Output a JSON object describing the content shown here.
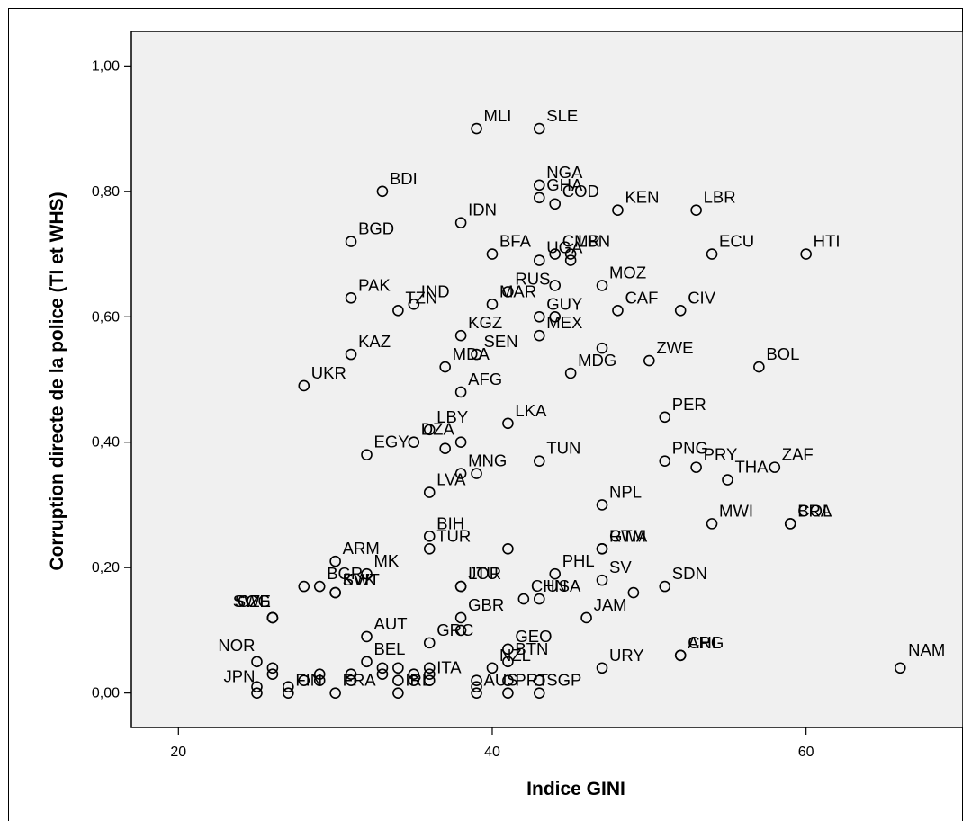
{
  "chart_data": {
    "type": "scatter",
    "title": "",
    "xlabel": "Indice GINI",
    "ylabel": "Corruption directe de la police (TI et WHS)",
    "xlim": [
      17,
      70
    ],
    "ylim": [
      -0.055,
      1.055
    ],
    "x_ticks": [
      20,
      40,
      60
    ],
    "x_tick_labels": [
      "20",
      "40",
      "60"
    ],
    "y_ticks": [
      0.0,
      0.2,
      0.4,
      0.6,
      0.8,
      1.0
    ],
    "y_tick_labels": [
      "0,00",
      "0,20",
      "0,40",
      "0,60",
      "0,80",
      "1,00"
    ],
    "grid": false,
    "marker": "open-circle",
    "points": [
      {
        "label": "MLI",
        "x": 39,
        "y": 0.9
      },
      {
        "label": "SLE",
        "x": 43,
        "y": 0.9
      },
      {
        "label": "BDI",
        "x": 33,
        "y": 0.8
      },
      {
        "label": "NGA",
        "x": 43,
        "y": 0.81
      },
      {
        "label": "GHA",
        "x": 43,
        "y": 0.79
      },
      {
        "label": "COD",
        "x": 44,
        "y": 0.78
      },
      {
        "label": "KEN",
        "x": 48,
        "y": 0.77
      },
      {
        "label": "LBR",
        "x": 53,
        "y": 0.77
      },
      {
        "label": "IDN",
        "x": 38,
        "y": 0.75
      },
      {
        "label": "BGD",
        "x": 31,
        "y": 0.72
      },
      {
        "label": "BFA",
        "x": 40,
        "y": 0.7
      },
      {
        "label": "UGA",
        "x": 43,
        "y": 0.69
      },
      {
        "label": "CMR",
        "x": 44,
        "y": 0.7
      },
      {
        "label": "LBN",
        "x": 45,
        "y": 0.7
      },
      {
        "label": "",
        "x": 45,
        "y": 0.69
      },
      {
        "label": "HTI",
        "x": 60,
        "y": 0.7
      },
      {
        "label": "ECU",
        "x": 54,
        "y": 0.7
      },
      {
        "label": "PAK",
        "x": 31,
        "y": 0.63
      },
      {
        "label": "MAR",
        "x": 40,
        "y": 0.62
      },
      {
        "label": "RUS",
        "x": 41,
        "y": 0.64
      },
      {
        "label": "MOZ",
        "x": 47,
        "y": 0.65
      },
      {
        "label": "",
        "x": 44,
        "y": 0.65
      },
      {
        "label": "TZN",
        "x": 34,
        "y": 0.61
      },
      {
        "label": "IND",
        "x": 35,
        "y": 0.62
      },
      {
        "label": "GUY",
        "x": 43,
        "y": 0.6
      },
      {
        "label": "",
        "x": 44,
        "y": 0.6
      },
      {
        "label": "CAF",
        "x": 48,
        "y": 0.61
      },
      {
        "label": "CIV",
        "x": 52,
        "y": 0.61
      },
      {
        "label": "MEX",
        "x": 43,
        "y": 0.57
      },
      {
        "label": "KAZ",
        "x": 31,
        "y": 0.54
      },
      {
        "label": "KGZ",
        "x": 38,
        "y": 0.57
      },
      {
        "label": "SEN",
        "x": 39,
        "y": 0.54
      },
      {
        "label": "MDA",
        "x": 37,
        "y": 0.52
      },
      {
        "label": "",
        "x": 47,
        "y": 0.55
      },
      {
        "label": "ZWE",
        "x": 50,
        "y": 0.53
      },
      {
        "label": "BOL",
        "x": 57,
        "y": 0.52
      },
      {
        "label": "MDG",
        "x": 45,
        "y": 0.51
      },
      {
        "label": "UKR",
        "x": 28,
        "y": 0.49
      },
      {
        "label": "AFG",
        "x": 38,
        "y": 0.48
      },
      {
        "label": "LKA",
        "x": 41,
        "y": 0.43
      },
      {
        "label": "LBY",
        "x": 36,
        "y": 0.42
      },
      {
        "label": "PER",
        "x": 51,
        "y": 0.44
      },
      {
        "label": "DZA",
        "x": 35,
        "y": 0.4
      },
      {
        "label": "",
        "x": 37,
        "y": 0.39
      },
      {
        "label": "",
        "x": 38,
        "y": 0.4
      },
      {
        "label": "TUN",
        "x": 43,
        "y": 0.37
      },
      {
        "label": "PNG",
        "x": 51,
        "y": 0.37
      },
      {
        "label": "PRY",
        "x": 53,
        "y": 0.36
      },
      {
        "label": "ZAF",
        "x": 58,
        "y": 0.36
      },
      {
        "label": "EGY",
        "x": 32,
        "y": 0.38
      },
      {
        "label": "MNG",
        "x": 38,
        "y": 0.35
      },
      {
        "label": "",
        "x": 39,
        "y": 0.35
      },
      {
        "label": "THA",
        "x": 55,
        "y": 0.34
      },
      {
        "label": "LVA",
        "x": 36,
        "y": 0.32
      },
      {
        "label": "NPL",
        "x": 47,
        "y": 0.3
      },
      {
        "label": "MWI",
        "x": 54,
        "y": 0.27
      },
      {
        "label": "BRA",
        "x": 59,
        "y": 0.27
      },
      {
        "label": "COL",
        "x": 59,
        "y": 0.27
      },
      {
        "label": "BIH",
        "x": 36,
        "y": 0.25
      },
      {
        "label": "TUR",
        "x": 36,
        "y": 0.23
      },
      {
        "label": "",
        "x": 41,
        "y": 0.23
      },
      {
        "label": "RWA",
        "x": 47,
        "y": 0.23
      },
      {
        "label": "GTM",
        "x": 47,
        "y": 0.23
      },
      {
        "label": "ARM",
        "x": 30,
        "y": 0.21
      },
      {
        "label": "MK",
        "x": 32,
        "y": 0.19
      },
      {
        "label": "LTU",
        "x": 38,
        "y": 0.17
      },
      {
        "label": "BGR",
        "x": 29,
        "y": 0.17
      },
      {
        "label": "",
        "x": 28,
        "y": 0.17
      },
      {
        "label": "JOR",
        "x": 38,
        "y": 0.17
      },
      {
        "label": "PHL",
        "x": 44,
        "y": 0.19
      },
      {
        "label": "SV",
        "x": 47,
        "y": 0.18
      },
      {
        "label": "SDN",
        "x": 51,
        "y": 0.17
      },
      {
        "label": "SVK",
        "x": 30,
        "y": 0.16
      },
      {
        "label": "KWT",
        "x": 30,
        "y": 0.16
      },
      {
        "label": "CHN",
        "x": 42,
        "y": 0.15
      },
      {
        "label": "USA",
        "x": 43,
        "y": 0.15
      },
      {
        "label": "",
        "x": 49,
        "y": 0.16
      },
      {
        "label": "SCG",
        "x": 26,
        "y": 0.12
      },
      {
        "label": "SWE",
        "x": 26,
        "y": 0.12
      },
      {
        "label": "CZE",
        "x": 26,
        "y": 0.12
      },
      {
        "label": "GBR",
        "x": 38,
        "y": 0.12
      },
      {
        "label": "",
        "x": 38,
        "y": 0.1
      },
      {
        "label": "JAM",
        "x": 46,
        "y": 0.12
      },
      {
        "label": "ARG",
        "x": 52,
        "y": 0.06
      },
      {
        "label": "GEO",
        "x": 41,
        "y": 0.07
      },
      {
        "label": "AUT",
        "x": 32,
        "y": 0.09
      },
      {
        "label": "BEL",
        "x": 32,
        "y": 0.05
      },
      {
        "label": "GRC",
        "x": 36,
        "y": 0.08
      },
      {
        "label": "NZL",
        "x": 40,
        "y": 0.04
      },
      {
        "label": "BTN",
        "x": 41,
        "y": 0.05
      },
      {
        "label": "URY",
        "x": 47,
        "y": 0.04
      },
      {
        "label": "CHL",
        "x": 52,
        "y": 0.06
      },
      {
        "label": "NAM",
        "x": 66,
        "y": 0.04
      },
      {
        "label": "NOR",
        "x": 25,
        "y": 0.05
      },
      {
        "label": "",
        "x": 26,
        "y": 0.04
      },
      {
        "label": "",
        "x": 26,
        "y": 0.03
      },
      {
        "label": "",
        "x": 29,
        "y": 0.03
      },
      {
        "label": "",
        "x": 31,
        "y": 0.03
      },
      {
        "label": "",
        "x": 33,
        "y": 0.04
      },
      {
        "label": "",
        "x": 34,
        "y": 0.04
      },
      {
        "label": "",
        "x": 33,
        "y": 0.03
      },
      {
        "label": "",
        "x": 35,
        "y": 0.03
      },
      {
        "label": "",
        "x": 36,
        "y": 0.04
      },
      {
        "label": "",
        "x": 36,
        "y": 0.03
      },
      {
        "label": "ITA",
        "x": 36,
        "y": 0.02
      },
      {
        "label": "",
        "x": 28,
        "y": 0.02
      },
      {
        "label": "",
        "x": 29,
        "y": 0.02
      },
      {
        "label": "",
        "x": 31,
        "y": 0.02
      },
      {
        "label": "",
        "x": 34,
        "y": 0.02
      },
      {
        "label": "",
        "x": 35,
        "y": 0.02
      },
      {
        "label": "",
        "x": 39,
        "y": 0.02
      },
      {
        "label": "",
        "x": 41,
        "y": 0.02
      },
      {
        "label": "",
        "x": 43,
        "y": 0.02
      },
      {
        "label": "",
        "x": 25,
        "y": 0.01
      },
      {
        "label": "",
        "x": 27,
        "y": 0.01
      },
      {
        "label": "",
        "x": 39,
        "y": 0.01
      },
      {
        "label": "JPN",
        "x": 25,
        "y": 0.0
      },
      {
        "label": "FRA",
        "x": 30,
        "y": 0.0
      },
      {
        "label": "FIN",
        "x": 27,
        "y": 0.0
      },
      {
        "label": "IRL",
        "x": 34,
        "y": 0.0
      },
      {
        "label": "AUS",
        "x": 39,
        "y": 0.0
      },
      {
        "label": "PRT",
        "x": 41,
        "y": 0.0
      },
      {
        "label": "SGP",
        "x": 43,
        "y": 0.0
      }
    ]
  }
}
